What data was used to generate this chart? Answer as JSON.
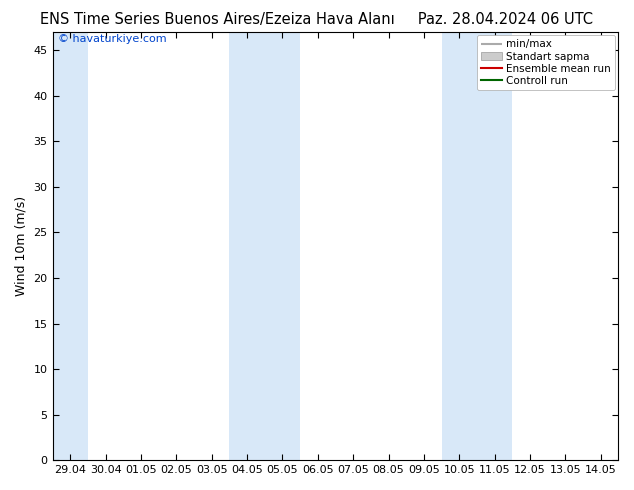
{
  "title": "ENS Time Series Buenos Aires/Ezeiza Hava Alanı",
  "date_label": "Paz. 28.04.2024 06 UTC",
  "ylabel": "Wind 10m (m/s)",
  "watermark": "© havaturkiye.com",
  "x_labels": [
    "29.04",
    "30.04",
    "01.05",
    "02.05",
    "03.05",
    "04.05",
    "05.05",
    "06.05",
    "07.05",
    "08.05",
    "09.05",
    "10.05",
    "11.05",
    "12.05",
    "13.05",
    "14.05"
  ],
  "x_ticks": [
    0,
    1,
    2,
    3,
    4,
    5,
    6,
    7,
    8,
    9,
    10,
    11,
    12,
    13,
    14,
    15
  ],
  "ylim": [
    0,
    47
  ],
  "yticks": [
    0,
    5,
    10,
    15,
    20,
    25,
    30,
    35,
    40,
    45
  ],
  "background_color": "#ffffff",
  "plot_bg_color": "#ffffff",
  "shaded_columns": [
    0,
    5,
    6,
    11,
    12
  ],
  "shade_color": "#d8e8f8",
  "title_fontsize": 10.5,
  "tick_fontsize": 8,
  "ylabel_fontsize": 9,
  "watermark_color": "#0044cc",
  "legend_fontsize": 7.5,
  "red_line_color": "#cc0000",
  "green_line_color": "#006600"
}
